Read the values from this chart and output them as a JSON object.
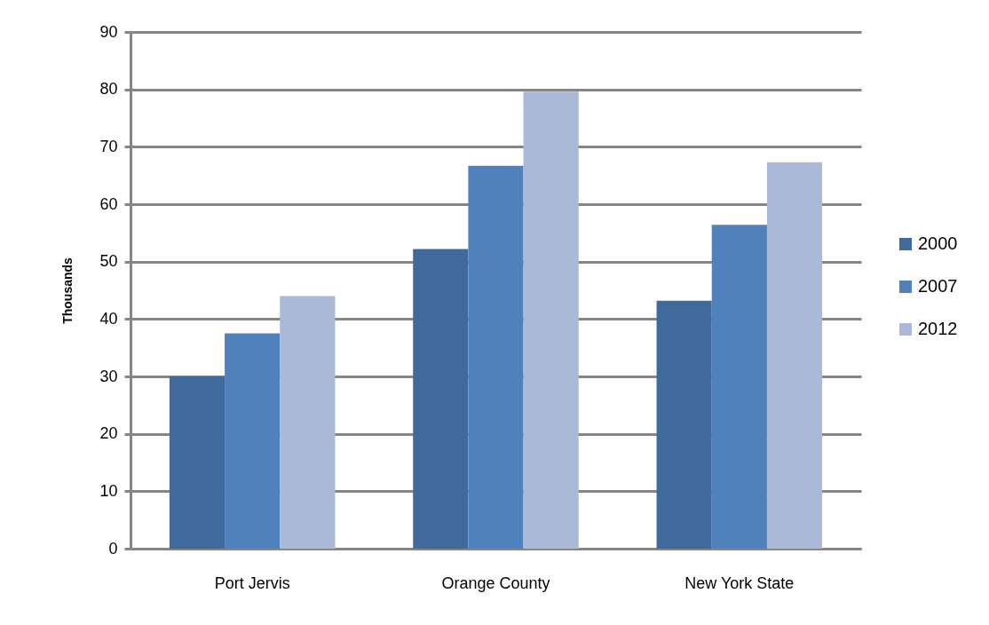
{
  "chart_data": {
    "type": "bar",
    "ylabel": "Thousands",
    "categories": [
      "Port Jervis",
      "Orange County",
      "New York State"
    ],
    "series": [
      {
        "name": "2000",
        "color": "#416a9c",
        "values": [
          30,
          52.2,
          43.2
        ]
      },
      {
        "name": "2007",
        "color": "#4f81bd",
        "values": [
          37.5,
          66.7,
          56.4
        ]
      },
      {
        "name": "2012",
        "color": "#aab9d7",
        "values": [
          44,
          79.6,
          67.3
        ]
      }
    ],
    "ylim": [
      0,
      90
    ],
    "yticks": [
      0,
      10,
      20,
      30,
      40,
      50,
      60,
      70,
      80,
      90
    ],
    "grid": "y",
    "legend": "right"
  }
}
